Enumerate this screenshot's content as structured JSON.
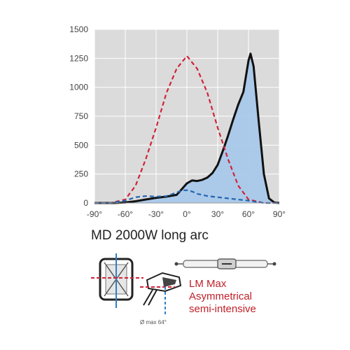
{
  "chart_data": {
    "type": "line",
    "title": "",
    "xlabel": "",
    "ylabel": "",
    "xlim": [
      -90,
      90
    ],
    "ylim": [
      0,
      1500
    ],
    "x_ticks": [
      -90,
      -60,
      -30,
      0,
      30,
      60,
      90
    ],
    "x_tick_labels": [
      "-90°",
      "-60°",
      "-30°",
      "0°",
      "30°",
      "60°",
      "90°"
    ],
    "y_ticks": [
      0,
      250,
      500,
      750,
      1000,
      1250,
      1500
    ],
    "y_tick_labels": [
      "0",
      "250",
      "500",
      "750",
      "1000",
      "1250",
      "1500"
    ],
    "grid": true,
    "series": [
      {
        "color": "#111111",
        "style": "solid",
        "fill": "#a9c8ea",
        "x": [
          -90,
          -80,
          -70,
          -60,
          -50,
          -40,
          -30,
          -20,
          -10,
          -5,
          0,
          5,
          10,
          15,
          20,
          25,
          30,
          35,
          40,
          45,
          50,
          55,
          60,
          62,
          65,
          70,
          75,
          80,
          85,
          90
        ],
        "y": [
          0,
          0,
          0,
          5,
          15,
          30,
          45,
          55,
          70,
          120,
          170,
          195,
          190,
          200,
          220,
          260,
          330,
          450,
          580,
          720,
          850,
          960,
          1230,
          1290,
          1180,
          700,
          250,
          40,
          5,
          0
        ]
      },
      {
        "color": "#d0233a",
        "style": "dashed",
        "x": [
          -90,
          -75,
          -60,
          -50,
          -40,
          -30,
          -20,
          -10,
          0,
          10,
          20,
          30,
          40,
          50,
          60,
          75,
          90
        ],
        "y": [
          0,
          0,
          30,
          150,
          380,
          650,
          950,
          1160,
          1270,
          1160,
          950,
          650,
          380,
          150,
          30,
          0,
          0
        ]
      },
      {
        "color": "#2366b0",
        "style": "dashed",
        "x": [
          -90,
          -75,
          -60,
          -50,
          -40,
          -30,
          -20,
          -10,
          -5,
          0,
          5,
          10,
          20,
          30,
          40,
          50,
          60,
          75,
          90
        ],
        "y": [
          0,
          0,
          20,
          50,
          60,
          55,
          60,
          90,
          110,
          110,
          100,
          80,
          60,
          50,
          40,
          30,
          20,
          0,
          0
        ]
      }
    ]
  },
  "product": {
    "title": "MD 2000W  long arc"
  },
  "description": {
    "line1": "LM Max",
    "line2": "Asymmetrical",
    "line3": "semi-intensive"
  },
  "pictogram": {
    "angle_label": "Ø max 64°"
  },
  "colors": {
    "plot_background": "#dbdbdb",
    "grid": "#ffffff",
    "accent_red": "#c0202a",
    "accent_blue": "#2e7fc8"
  }
}
